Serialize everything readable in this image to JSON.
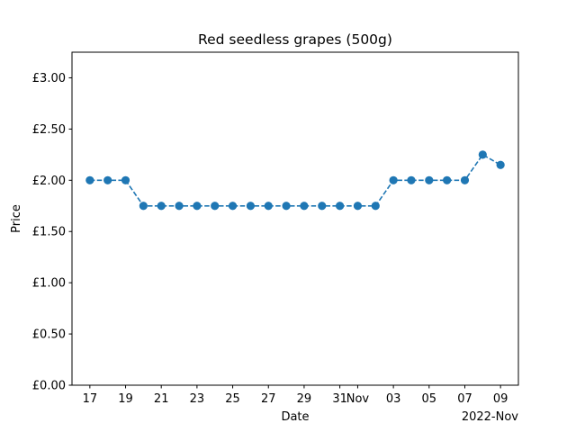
{
  "chart_data": {
    "type": "line",
    "title": "Red seedless grapes (500g)",
    "xlabel": "Date",
    "ylabel": "Price",
    "offset_label": "2022-Nov",
    "series": [
      {
        "x": [
          "2022-10-17",
          "2022-10-18",
          "2022-10-19",
          "2022-10-20",
          "2022-10-21",
          "2022-10-22",
          "2022-10-23",
          "2022-10-24",
          "2022-10-25",
          "2022-10-26",
          "2022-10-27",
          "2022-10-28",
          "2022-10-29",
          "2022-10-30",
          "2022-10-31",
          "2022-11-01",
          "2022-11-02",
          "2022-11-03",
          "2022-11-04",
          "2022-11-05",
          "2022-11-06",
          "2022-11-07",
          "2022-11-08",
          "2022-11-09"
        ],
        "y": [
          2.0,
          2.0,
          2.0,
          1.75,
          1.75,
          1.75,
          1.75,
          1.75,
          1.75,
          1.75,
          1.75,
          1.75,
          1.75,
          1.75,
          1.75,
          1.75,
          1.75,
          2.0,
          2.0,
          2.0,
          2.0,
          2.0,
          2.25,
          2.15
        ],
        "color": "#1f77b4",
        "line_style": "dashed",
        "marker": "circle"
      }
    ],
    "xlim": [
      "2022-10-16",
      "2022-11-10"
    ],
    "ylim": [
      0,
      3.25
    ],
    "x_ticks": [
      {
        "date": "2022-10-17",
        "label": "17"
      },
      {
        "date": "2022-10-19",
        "label": "19"
      },
      {
        "date": "2022-10-21",
        "label": "21"
      },
      {
        "date": "2022-10-23",
        "label": "23"
      },
      {
        "date": "2022-10-25",
        "label": "25"
      },
      {
        "date": "2022-10-27",
        "label": "27"
      },
      {
        "date": "2022-10-29",
        "label": "29"
      },
      {
        "date": "2022-10-31",
        "label": "31"
      },
      {
        "date": "2022-11-01",
        "label": "Nov"
      },
      {
        "date": "2022-11-03",
        "label": "03"
      },
      {
        "date": "2022-11-05",
        "label": "05"
      },
      {
        "date": "2022-11-07",
        "label": "07"
      },
      {
        "date": "2022-11-09",
        "label": "09"
      }
    ],
    "y_ticks": [
      {
        "value": 0.0,
        "label": "£0.00"
      },
      {
        "value": 0.5,
        "label": "£0.50"
      },
      {
        "value": 1.0,
        "label": "£1.00"
      },
      {
        "value": 1.5,
        "label": "£1.50"
      },
      {
        "value": 2.0,
        "label": "£2.00"
      },
      {
        "value": 2.5,
        "label": "£2.50"
      },
      {
        "value": 3.0,
        "label": "£3.00"
      }
    ],
    "grid": false,
    "legend": "none"
  }
}
